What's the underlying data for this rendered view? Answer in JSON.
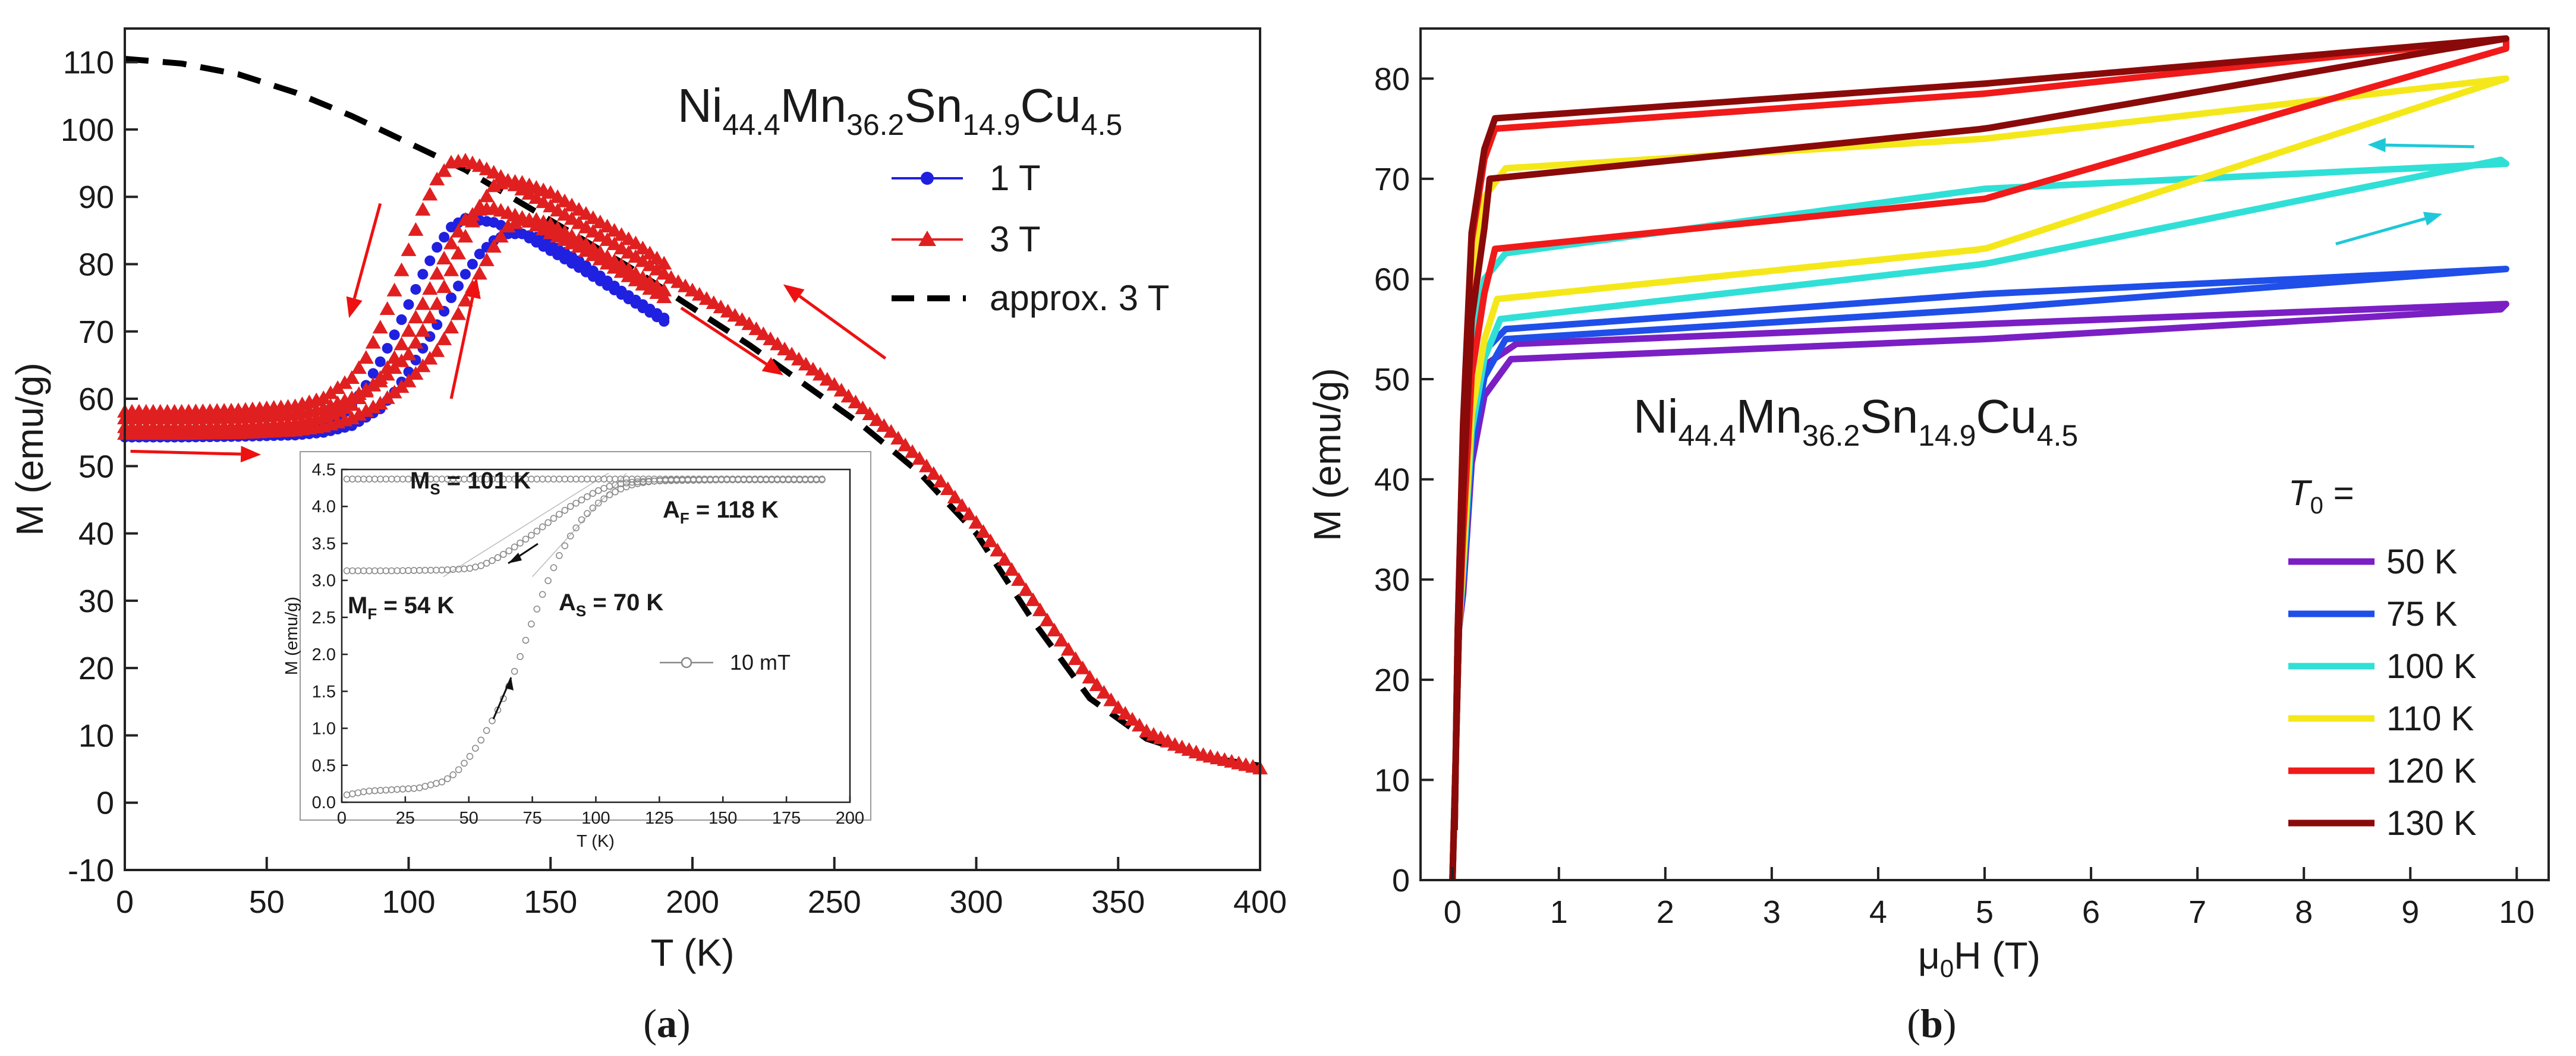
{
  "chart_data": [
    {
      "id": "a",
      "type": "scatter",
      "panel_label": "(a)",
      "xlabel": "T (K)",
      "ylabel": "M (emu/g)",
      "xlim": [
        0,
        400
      ],
      "ylim": [
        -10,
        115
      ],
      "xticks": [
        0,
        50,
        100,
        150,
        200,
        250,
        300,
        350,
        400
      ],
      "yticks": [
        -10,
        0,
        10,
        20,
        30,
        40,
        50,
        60,
        70,
        80,
        90,
        100,
        110
      ],
      "compound": {
        "parts": [
          [
            "Ni",
            "44.4"
          ],
          [
            "Mn",
            "36.2"
          ],
          [
            "Sn",
            "14.9"
          ],
          [
            "Cu",
            "4.5"
          ]
        ]
      },
      "legend": [
        {
          "label": "1 T",
          "color": "#2020e0",
          "marker": "circle"
        },
        {
          "label": "3 T",
          "color": "#e02020",
          "marker": "triangle"
        },
        {
          "label": "approx. 3 T",
          "color": "#000000",
          "marker": "dash"
        }
      ],
      "series": [
        {
          "name": "1 T",
          "color": "#2020e0",
          "branches": [
            {
              "x": [
                0,
                20,
                40,
                60,
                70,
                75,
                80,
                85,
                90,
                95,
                100,
                105,
                110,
                115,
                120,
                130,
                140,
                150,
                160,
                175,
                190
              ],
              "y": [
                54.5,
                54.5,
                54.6,
                55,
                55.8,
                57,
                59,
                62,
                65.5,
                69.5,
                74,
                78.5,
                82.5,
                85.5,
                86.8,
                86.2,
                84.5,
                82,
                79.5,
                75.5,
                71.5
              ]
            },
            {
              "x": [
                0,
                20,
                40,
                60,
                70,
                80,
                90,
                95,
                100,
                105,
                110,
                115,
                120,
                125,
                130,
                135,
                140,
                145,
                150,
                160,
                175,
                190
              ],
              "y": [
                54.3,
                54.3,
                54.4,
                54.6,
                55,
                56,
                58.5,
                61,
                64,
                67.5,
                71,
                75,
                78.5,
                81.5,
                83.5,
                84.5,
                84.5,
                84,
                83,
                80.5,
                76,
                72
              ]
            }
          ]
        },
        {
          "name": "3 T",
          "color": "#e02020",
          "branches": [
            {
              "x": [
                0,
                20,
                40,
                60,
                70,
                80,
                85,
                90,
                95,
                100,
                105,
                110,
                115,
                120,
                125,
                130,
                140,
                150,
                160,
                170,
                180,
                190,
                200,
                210,
                220,
                230,
                240,
                250,
                260,
                270,
                280,
                290,
                300,
                310,
                320,
                330,
                340,
                350,
                360,
                370,
                380,
                390,
                400
              ],
              "y": [
                58,
                58,
                58.2,
                58.8,
                60,
                63,
                66,
                70.5,
                76,
                82,
                88,
                92.5,
                95,
                95.3,
                94.5,
                93.5,
                91,
                88.5,
                86,
                83.5,
                81,
                78.5,
                76,
                73.5,
                71,
                68,
                65,
                62,
                58.5,
                55,
                51,
                46.5,
                41.5,
                36,
                30,
                24,
                18.5,
                14,
                10.5,
                8.5,
                7,
                6,
                5
              ]
            },
            {
              "x": [
                0,
                20,
                40,
                60,
                70,
                80,
                90,
                95,
                100,
                105,
                110,
                115,
                120,
                125,
                130,
                140,
                150,
                160,
                170,
                180,
                190
              ],
              "y": [
                55.7,
                55.7,
                55.8,
                56.3,
                57.2,
                59,
                63,
                66,
                70,
                74,
                78.5,
                83,
                86.5,
                88,
                88.2,
                86.8,
                84.5,
                82.5,
                80,
                77.5,
                75
              ]
            },
            {
              "x": [
                0,
                20,
                40,
                60,
                70,
                80,
                90,
                100,
                105,
                110,
                115,
                120,
                125,
                130,
                135,
                140,
                150,
                160,
                170,
                180,
                190
              ],
              "y": [
                57,
                57,
                57.1,
                57.6,
                58.5,
                60,
                62.5,
                66.5,
                70,
                74,
                79,
                84,
                88.5,
                91.5,
                92.3,
                92,
                90.5,
                88,
                85.5,
                83,
                80
              ]
            },
            {
              "x": [
                0,
                20,
                40,
                60,
                70,
                80,
                90,
                100,
                110,
                115,
                120,
                125,
                130,
                135,
                140,
                145,
                150,
                160,
                170,
                180,
                190
              ],
              "y": [
                54.7,
                54.7,
                54.8,
                55.2,
                55.8,
                57,
                59.2,
                62.5,
                67,
                70.5,
                74.5,
                78.5,
                82.5,
                85.5,
                86.5,
                86.5,
                85.8,
                83.5,
                81,
                78.5,
                76
              ]
            }
          ]
        },
        {
          "name": "approx. 3 T",
          "color": "#000000",
          "dashed": true,
          "x": [
            0,
            20,
            40,
            60,
            80,
            100,
            120,
            140,
            160,
            180,
            200,
            220,
            240,
            260,
            280,
            300,
            320,
            340,
            360,
            380,
            400
          ],
          "y": [
            110.5,
            109.8,
            108.2,
            105.5,
            102,
            98,
            94,
            89,
            84,
            79,
            73.5,
            68,
            62,
            56,
            49,
            40,
            27,
            15.5,
            9.5,
            6.8,
            5.5
          ]
        }
      ],
      "arrows_red": [
        {
          "from": [
            2,
            52.2
          ],
          "to": [
            48,
            51.7
          ]
        },
        {
          "from": [
            90,
            89
          ],
          "to": [
            79,
            72
          ]
        },
        {
          "from": [
            115,
            60
          ],
          "to": [
            124,
            78
          ]
        },
        {
          "from": [
            196,
            73.5
          ],
          "to": [
            232,
            63.5
          ]
        },
        {
          "from": [
            268,
            66
          ],
          "to": [
            232,
            77
          ]
        }
      ],
      "inset": {
        "xlabel": "T (K)",
        "ylabel": "M (emu/g)",
        "xlim": [
          0,
          200
        ],
        "ylim": [
          0,
          4.5
        ],
        "xticks": [
          0,
          25,
          50,
          75,
          100,
          125,
          150,
          175,
          200
        ],
        "yticks": [
          0.0,
          0.5,
          1.0,
          1.5,
          2.0,
          2.5,
          3.0,
          3.5,
          4.0,
          4.5
        ],
        "legend": "10 mT",
        "annotations": [
          {
            "main": "M",
            "sub": "S",
            "value": " = 101 K"
          },
          {
            "main": "A",
            "sub": "F",
            "value": " = 118 K"
          },
          {
            "main": "M",
            "sub": "F",
            "value": " = 54 K"
          },
          {
            "main": "A",
            "sub": "S",
            "value": " = 70 K"
          }
        ],
        "heating": {
          "x": [
            2,
            10,
            20,
            30,
            40,
            45,
            50,
            55,
            60,
            65,
            70,
            75,
            80,
            85,
            90,
            95,
            100,
            105,
            110,
            115,
            120,
            125,
            130,
            150,
            170,
            190
          ],
          "y": [
            0.1,
            0.15,
            0.17,
            0.19,
            0.28,
            0.4,
            0.6,
            0.85,
            1.15,
            1.5,
            1.95,
            2.45,
            2.9,
            3.3,
            3.6,
            3.85,
            4.02,
            4.15,
            4.24,
            4.3,
            4.33,
            4.35,
            4.36,
            4.37,
            4.37,
            4.37
          ]
        },
        "cooling": {
          "x": [
            190,
            170,
            150,
            130,
            120,
            115,
            110,
            105,
            100,
            95,
            90,
            85,
            80,
            75,
            70,
            65,
            60,
            55,
            50,
            40,
            30,
            20,
            10,
            2
          ],
          "y": [
            4.37,
            4.37,
            4.36,
            4.35,
            4.33,
            4.28,
            4.2,
            4.05,
            3.88,
            3.7,
            3.55,
            3.42,
            3.32,
            3.24,
            3.18,
            3.15,
            3.13,
            3.12,
            3.12,
            3.11,
            3.11,
            3.11,
            3.11,
            3.11
          ]
        },
        "upper": {
          "x": [
            2,
            20,
            40,
            50,
            55,
            60,
            65,
            70,
            75,
            80,
            85,
            90,
            95,
            100,
            105,
            110,
            115,
            120,
            130,
            150,
            170,
            190
          ],
          "y": [
            3.13,
            3.13,
            3.14,
            3.16,
            3.2,
            3.28,
            3.38,
            3.5,
            3.62,
            3.75,
            3.88,
            4.0,
            4.1,
            4.2,
            4.27,
            4.31,
            4.33,
            4.34,
            4.35,
            4.36,
            4.36,
            4.36
          ]
        }
      }
    },
    {
      "id": "b",
      "type": "line",
      "panel_label": "(b)",
      "xlabel_parts": {
        "pre": "μ",
        "sub": "0",
        "post": "H (T)"
      },
      "ylabel": "M (emu/g)",
      "xlim": [
        -0.3,
        10.3
      ],
      "ylim": [
        0,
        85
      ],
      "xticks": [
        0,
        1,
        2,
        3,
        4,
        5,
        6,
        7,
        8,
        9,
        10
      ],
      "yticks": [
        0,
        10,
        20,
        30,
        40,
        50,
        60,
        70,
        80
      ],
      "compound": {
        "parts": [
          [
            "Ni",
            "44.4"
          ],
          [
            "Mn",
            "36.2"
          ],
          [
            "Sn",
            "14.9"
          ],
          [
            "Cu",
            "4.5"
          ]
        ]
      },
      "legend_title_parts": {
        "main": "T",
        "sub": "0",
        "post": " ="
      },
      "series": [
        {
          "name": "50 K",
          "label": "50 K",
          "color": "#7a1fc4",
          "knee": 0.55,
          "up": [
            52,
            54,
            57
          ],
          "down": [
            53.5,
            55.5,
            57.5
          ]
        },
        {
          "name": "75 K",
          "label": "75 K",
          "color": "#1f4fe8",
          "knee": 0.5,
          "up": [
            54,
            57,
            61
          ],
          "down": [
            55,
            58.5,
            61
          ]
        },
        {
          "name": "100 K",
          "label": "100 K",
          "color": "#30e0d6",
          "knee": 0.45,
          "up": [
            56,
            61.5,
            72
          ],
          "down": [
            62.5,
            69,
            71.5
          ]
        },
        {
          "name": "110 K",
          "label": "110 K",
          "color": "#f4e81a",
          "knee": 0.42,
          "up": [
            58,
            63,
            80
          ],
          "down": [
            71,
            74,
            80
          ]
        },
        {
          "name": "120 K",
          "label": "120 K",
          "color": "#f01a1a",
          "knee": 0.4,
          "up": [
            63,
            68,
            83
          ],
          "down": [
            75,
            78.5,
            84
          ]
        },
        {
          "name": "130 K",
          "label": "130 K",
          "color": "#8a0a0a",
          "knee": 0.35,
          "up": [
            70,
            75,
            84
          ],
          "down": [
            76,
            79.5,
            84
          ]
        }
      ],
      "arrows_cyan": [
        {
          "from": [
            9.6,
            73.2
          ],
          "to": [
            8.6,
            73.4
          ]
        },
        {
          "from": [
            8.3,
            63.5
          ],
          "to": [
            9.3,
            66.5
          ]
        }
      ]
    }
  ]
}
